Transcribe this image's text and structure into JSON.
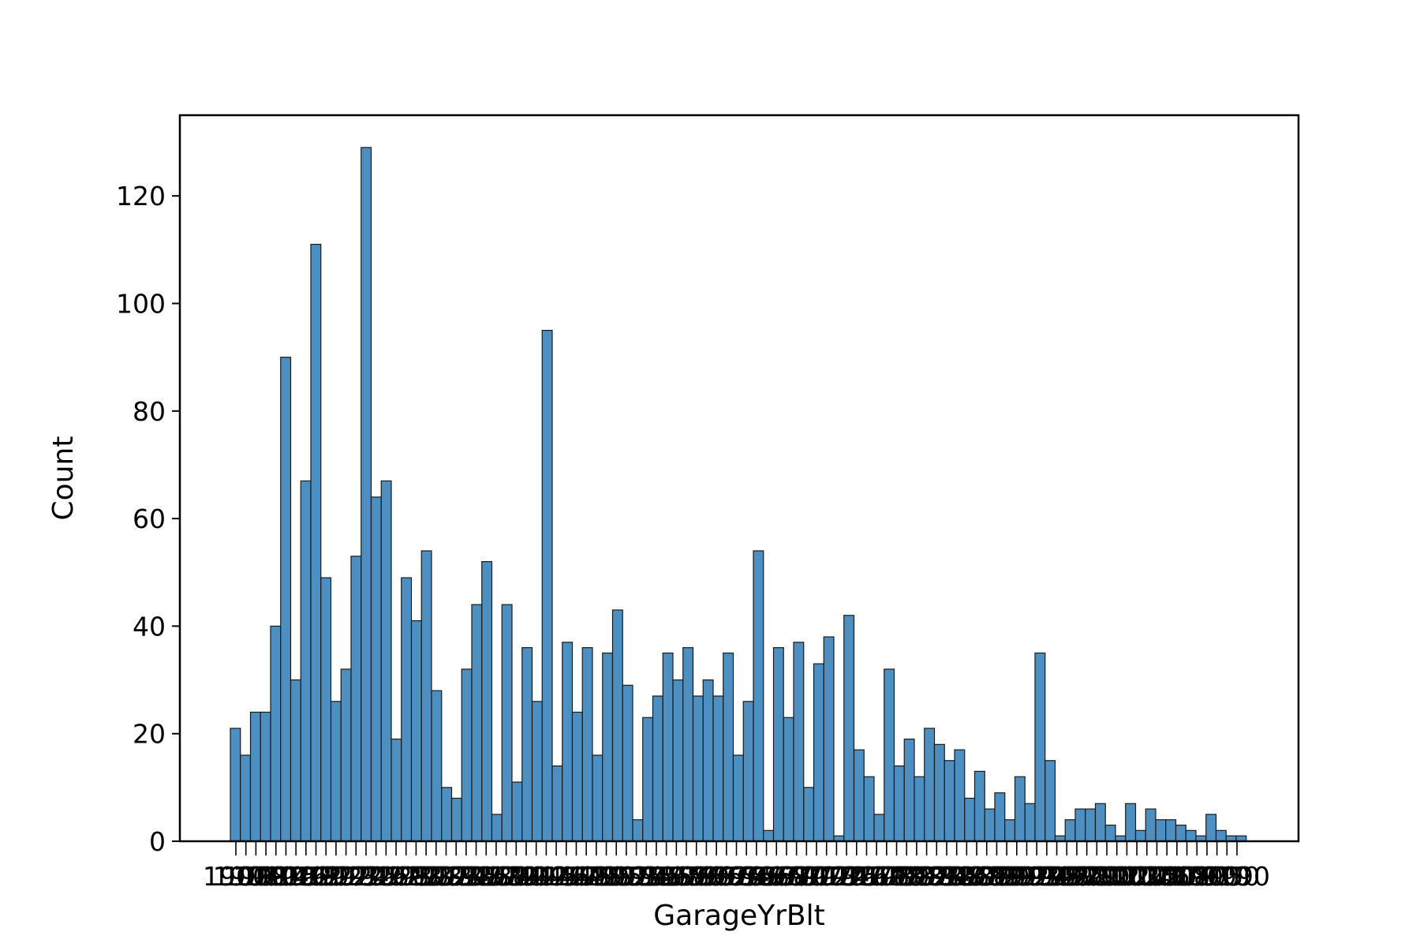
{
  "chart_data": {
    "type": "bar",
    "xlabel": "GarageYrBlt",
    "ylabel": "Count",
    "ylim": [
      0,
      135
    ],
    "yticks": [
      0,
      20,
      40,
      60,
      80,
      100,
      120
    ],
    "grid": false,
    "bar_color": "#4c8fc0",
    "bar_edge_color": "#1a1a1a",
    "x_tick_labels_note": "overlapping year labels",
    "values": [
      21,
      16,
      24,
      24,
      40,
      90,
      30,
      67,
      111,
      49,
      26,
      32,
      53,
      129,
      64,
      67,
      19,
      49,
      41,
      54,
      28,
      10,
      8,
      32,
      44,
      52,
      5,
      44,
      11,
      36,
      26,
      95,
      14,
      37,
      24,
      36,
      16,
      35,
      43,
      29,
      4,
      23,
      27,
      35,
      30,
      36,
      27,
      30,
      27,
      35,
      16,
      26,
      54,
      2,
      36,
      23,
      37,
      10,
      33,
      38,
      1,
      42,
      17,
      12,
      5,
      32,
      14,
      19,
      12,
      21,
      18,
      15,
      17,
      8,
      13,
      6,
      9,
      4,
      12,
      7,
      35,
      15,
      1,
      4,
      6,
      6,
      7,
      3,
      1,
      7,
      2,
      6,
      4,
      4,
      3,
      2,
      1,
      5,
      2,
      1,
      1
    ],
    "categories": [
      "1900",
      "1906",
      "1908",
      "1910",
      "1914",
      "1915",
      "1916",
      "1918",
      "1920",
      "1921",
      "1922",
      "1923",
      "1924",
      "1925",
      "1926",
      "1927",
      "1928",
      "1929",
      "1930",
      "1931",
      "1932",
      "1933",
      "1934",
      "1935",
      "1936",
      "1937",
      "1938",
      "1939",
      "1940",
      "1941",
      "1942",
      "1945",
      "1946",
      "1947",
      "1948",
      "1949",
      "1950",
      "1951",
      "1952",
      "1953",
      "1954",
      "1955",
      "1956",
      "1957",
      "1958",
      "1959",
      "1960",
      "1961",
      "1962",
      "1963",
      "1964",
      "1965",
      "1966",
      "1967",
      "1968",
      "1969",
      "1970",
      "1971",
      "1972",
      "1973",
      "1974",
      "1975",
      "1976",
      "1977",
      "1978",
      "1979",
      "1980",
      "1981",
      "1982",
      "1983",
      "1984",
      "1985",
      "1986",
      "1987",
      "1988",
      "1989",
      "1990",
      "1991",
      "1992",
      "1993",
      "1994",
      "1995",
      "1996",
      "1997",
      "1998",
      "1999",
      "2000",
      "2001",
      "2002",
      "2003",
      "2004",
      "2005",
      "2006",
      "2007",
      "2008",
      "2009",
      "2010",
      "1900",
      "1910",
      "1950",
      "1990"
    ]
  }
}
